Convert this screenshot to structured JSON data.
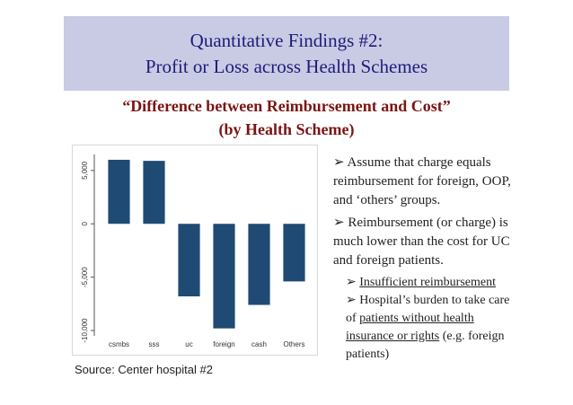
{
  "header": {
    "title_line1": "Quantitative Findings #2:",
    "title_line2": "Profit or Loss across Health Schemes"
  },
  "subtitle": {
    "line1": "“Difference between Reimbursement and Cost”",
    "line2": "(by Health Scheme)"
  },
  "chart_data": {
    "type": "bar",
    "title": "Difference between Reimbursement and Cost (by Health Scheme)",
    "xlabel": "",
    "ylabel": "",
    "categories": [
      "csmbs",
      "sss",
      "uc",
      "foreign",
      "cash",
      "Others"
    ],
    "values": [
      6000,
      5900,
      -6800,
      -9800,
      -7600,
      -5400
    ],
    "yticks": [
      -10000,
      -5000,
      0,
      5000
    ],
    "ytick_labels": [
      "-10,000",
      "-5,000",
      "0",
      "5,000"
    ],
    "ylim": [
      -10500,
      6500
    ],
    "bar_color": "#1f4a73",
    "grid": false
  },
  "bullets": {
    "b1": "Assume that charge equals reimbursement for foreign, OOP, and ‘others’ groups.",
    "b2": "Reimbursement (or charge) is much lower than the cost for UC and foreign patients.",
    "sub1": "Insufficient reimbursement",
    "sub2_prefix": "Hospital’s burden to take care of ",
    "sub2_link1": "patients without health insurance or rights",
    "sub2_suffix": " (e.g. foreign patients)",
    "marker": "➢"
  },
  "source": "Source: Center hospital #2",
  "colors": {
    "title_bg": "#c9cbe4",
    "title_text": "#1f1b7a",
    "subtitle_text": "#7a1414"
  }
}
